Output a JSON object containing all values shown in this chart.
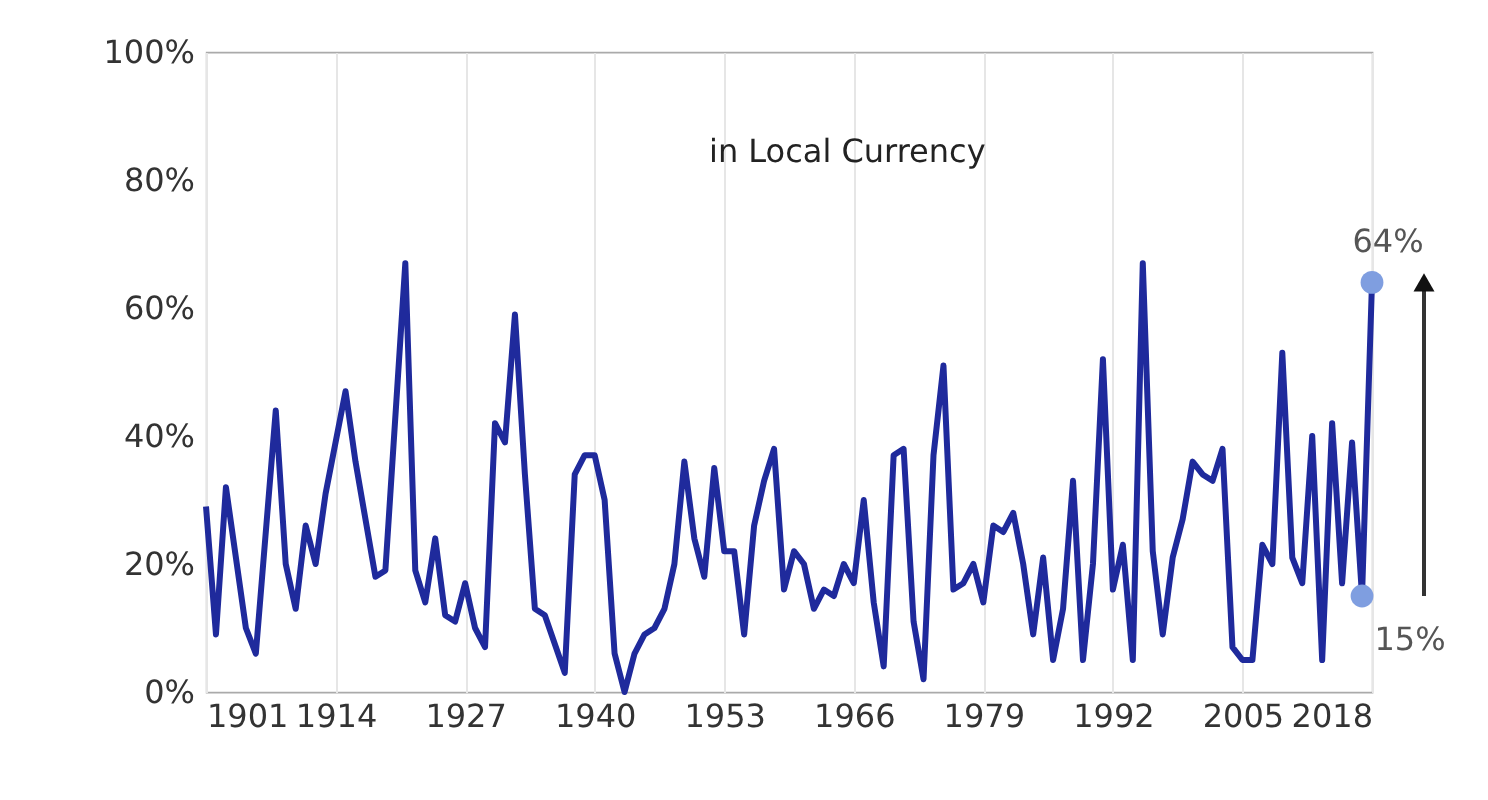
{
  "chart_data": {
    "type": "line",
    "title": "in Local Currency",
    "x": [
      1901,
      1902,
      1903,
      1905,
      1906,
      1908,
      1909,
      1910,
      1911,
      1912,
      1913,
      1915,
      1916,
      1918,
      1919,
      1921,
      1922,
      1923,
      1924,
      1925,
      1926,
      1927,
      1928,
      1929,
      1930,
      1931,
      1932,
      1933,
      1934,
      1935,
      1937,
      1938,
      1939,
      1940,
      1941,
      1942,
      1943,
      1944,
      1945,
      1946,
      1947,
      1948,
      1949,
      1950,
      1951,
      1952,
      1953,
      1954,
      1955,
      1956,
      1957,
      1958,
      1959,
      1960,
      1961,
      1962,
      1963,
      1964,
      1965,
      1966,
      1967,
      1968,
      1969,
      1970,
      1971,
      1972,
      1973,
      1974,
      1975,
      1976,
      1977,
      1978,
      1979,
      1980,
      1981,
      1982,
      1983,
      1984,
      1985,
      1986,
      1987,
      1988,
      1989,
      1990,
      1991,
      1992,
      1993,
      1994,
      1995,
      1996,
      1997,
      1998,
      1999,
      2000,
      2001,
      2002,
      2003,
      2004,
      2005,
      2006,
      2007,
      2008,
      2009,
      2010,
      2011,
      2012,
      2013,
      2014,
      2015,
      2016,
      2017,
      2018
    ],
    "series": [
      {
        "color": "#1f2a9c",
        "values": [
          29,
          9,
          32,
          10,
          6,
          44,
          20,
          13,
          26,
          20,
          31,
          47,
          36,
          18,
          19,
          67,
          19,
          14,
          24,
          12,
          11,
          17,
          10,
          7,
          42,
          39,
          59,
          34,
          13,
          12,
          3,
          34,
          37,
          37,
          30,
          6,
          0,
          6,
          9,
          10,
          13,
          20,
          36,
          24,
          18,
          35,
          22,
          22,
          9,
          26,
          33,
          38,
          16,
          22,
          20,
          13,
          16,
          15,
          20,
          17,
          30,
          14,
          4,
          37,
          38,
          11,
          2,
          37,
          51,
          16,
          17,
          20,
          14,
          26,
          25,
          28,
          20,
          9,
          21,
          5,
          13,
          33,
          5,
          20,
          52,
          16,
          23,
          5,
          67,
          22,
          9,
          21,
          27,
          36,
          34,
          33,
          38,
          7,
          5,
          5,
          23,
          20,
          53,
          21,
          17,
          40,
          5,
          42,
          17,
          39,
          15,
          64
        ]
      },
      {
        "type": "scatter",
        "marker": "circle",
        "color": "#7f9ee0",
        "x": [
          2017,
          2018
        ],
        "values": [
          15,
          64
        ],
        "value_labels": [
          "15%",
          "64%"
        ]
      }
    ],
    "xlim": [
      1901,
      2018
    ],
    "xticks": [
      1901,
      1914,
      1927,
      1940,
      1953,
      1966,
      1979,
      1992,
      2005,
      2018
    ],
    "ylim": [
      0,
      100
    ],
    "yticks": [
      {
        "value": 0,
        "label": "0%"
      },
      {
        "value": 20,
        "label": "20%"
      },
      {
        "value": 40,
        "label": "40%"
      },
      {
        "value": 60,
        "label": "60%"
      },
      {
        "value": 80,
        "label": "80%"
      },
      {
        "value": 100,
        "label": "100%"
      }
    ],
    "grid": "x",
    "line_style": "solid"
  }
}
